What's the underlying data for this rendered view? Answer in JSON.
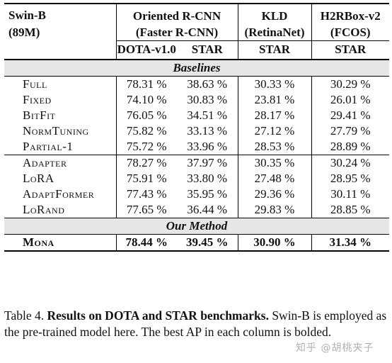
{
  "table": {
    "model_line1": "Swin-B",
    "model_line2": "(89M)",
    "groups": [
      {
        "line1": "Oriented R-CNN",
        "line2": "(Faster R-CNN)"
      },
      {
        "line1": "KLD",
        "line2": "(RetinaNet)"
      },
      {
        "line1": "H2RBox-v2",
        "line2": "(FCOS)"
      }
    ],
    "subheaders": [
      "DOTA-v1.0",
      "STAR",
      "STAR",
      "STAR"
    ],
    "section_baselines": "Baselines",
    "baselines_a": [
      {
        "name": "Full",
        "v": [
          "78.31 %",
          "38.63 %",
          "30.33 %",
          "30.29 %"
        ]
      },
      {
        "name": "Fixed",
        "v": [
          "74.10 %",
          "30.83 %",
          "23.81 %",
          "26.01 %"
        ]
      },
      {
        "name": "BitFit",
        "v": [
          "76.05 %",
          "34.51 %",
          "28.17 %",
          "29.41 %"
        ]
      },
      {
        "name": "NormTuning",
        "v": [
          "75.82 %",
          "33.13 %",
          "27.12 %",
          "27.79 %"
        ]
      },
      {
        "name": "Partial-1",
        "v": [
          "75.72 %",
          "33.96 %",
          "28.53 %",
          "28.89 %"
        ]
      }
    ],
    "baselines_b": [
      {
        "name": "Adapter",
        "v": [
          "78.27 %",
          "37.97 %",
          "30.35 %",
          "30.24 %"
        ]
      },
      {
        "name": "LoRA",
        "v": [
          "75.91 %",
          "33.80 %",
          "27.48 %",
          "28.95 %"
        ]
      },
      {
        "name": "AdaptFormer",
        "v": [
          "77.43 %",
          "35.95 %",
          "29.36 %",
          "30.11 %"
        ]
      },
      {
        "name": "LoRand",
        "v": [
          "77.65 %",
          "36.44 %",
          "29.83 %",
          "28.85 %"
        ]
      }
    ],
    "section_ours": "Our Method",
    "ours": {
      "name": "Mona",
      "v": [
        "78.44 %",
        "39.45 %",
        "30.90 %",
        "31.34 %"
      ]
    }
  },
  "caption": {
    "label": "Table 4.",
    "bold": "Results on DOTA and STAR benchmarks.",
    "rest": "Swin-B is employed as the pre-trained model here. The best AP in each column is bolded."
  },
  "watermark": "知乎 @胡桃夹子"
}
